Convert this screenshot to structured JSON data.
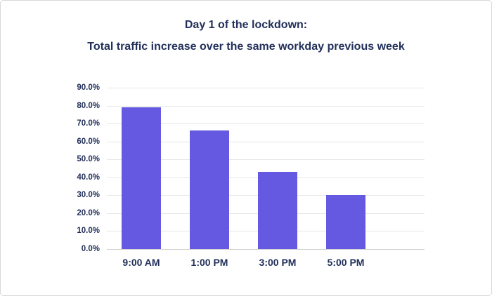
{
  "card": {
    "background": "#ffffff",
    "border_color": "#d8d8d8"
  },
  "title": {
    "line1": "Day 1 of the lockdown:",
    "line2": "Total traffic increase over the same workday previous week",
    "color": "#22305a"
  },
  "chart_data": {
    "type": "bar",
    "title": "Day 1 of the lockdown: Total traffic increase over the same workday previous week",
    "categories": [
      "9:00 AM",
      "1:00 PM",
      "3:00 PM",
      "5:00 PM"
    ],
    "values": [
      79,
      66,
      43,
      30
    ],
    "xlabel": "",
    "ylabel": "",
    "ylim": [
      0,
      90
    ],
    "ytick_step": 10,
    "ytick_labels": [
      "0.0%",
      "10.0%",
      "20.0%",
      "30.0%",
      "40.0%",
      "50.0%",
      "60.0%",
      "70.0%",
      "80.0%",
      "90.0%"
    ],
    "grid": true,
    "legend": false,
    "bar_color": "#6459e0",
    "gridline_color": "#e7e7e7",
    "baseline_color": "#cdcdcd",
    "label_color": "#22305a"
  }
}
